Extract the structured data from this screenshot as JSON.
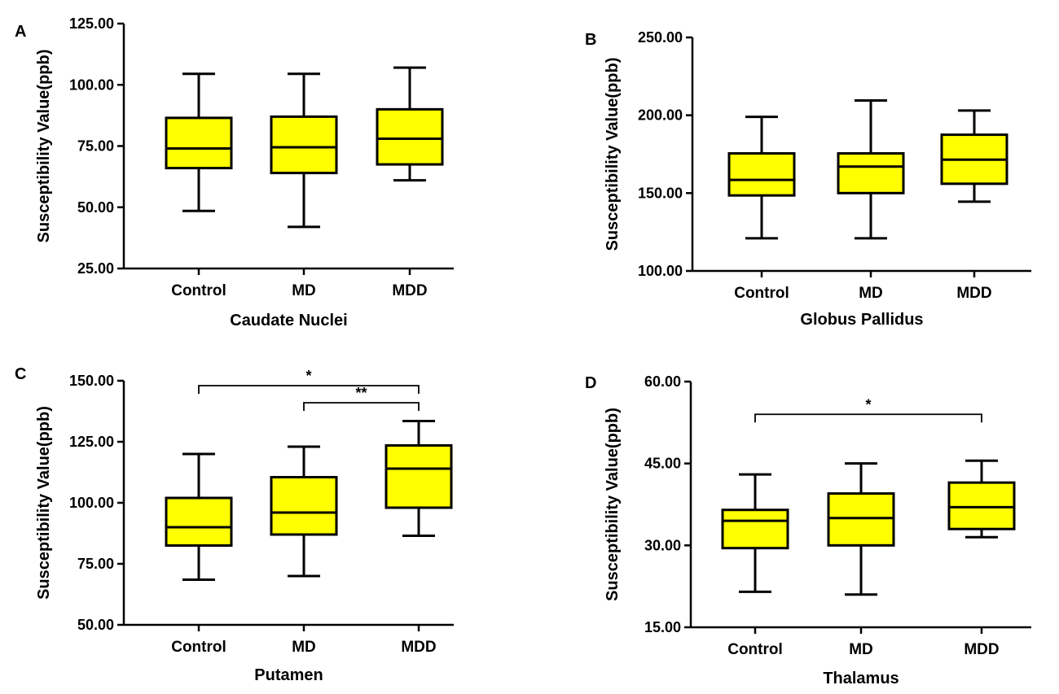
{
  "colors": {
    "box_fill": "#ffff00",
    "stroke": "#000000",
    "background": "#ffffff"
  },
  "chart_data": [
    {
      "type": "box",
      "panel": "A",
      "title": "",
      "xlabel": "Caudate Nuclei",
      "ylabel": "Susceptibility Value(ppb)",
      "ylim": [
        25,
        125
      ],
      "yticks": [
        25,
        50,
        75,
        100,
        125
      ],
      "ytick_labels": [
        "25.00",
        "50.00",
        "75.00",
        "100.00",
        "125.00"
      ],
      "categories": [
        "Control",
        "MD",
        "MDD"
      ],
      "boxes": [
        {
          "category": "Control",
          "min": 48.5,
          "q1": 66,
          "median": 74,
          "q3": 86.5,
          "max": 104.5
        },
        {
          "category": "MD",
          "min": 42,
          "q1": 64,
          "median": 74.5,
          "q3": 87,
          "max": 104.5
        },
        {
          "category": "MDD",
          "min": 61,
          "q1": 67.5,
          "median": 78,
          "q3": 90,
          "max": 107
        }
      ],
      "significance": []
    },
    {
      "type": "box",
      "panel": "B",
      "title": "",
      "xlabel": "Globus Pallidus",
      "ylabel": "Susceptibility Value(ppb)",
      "ylim": [
        100,
        250
      ],
      "yticks": [
        100,
        150,
        200,
        250
      ],
      "ytick_labels": [
        "100.00",
        "150.00",
        "200.00",
        "250.00"
      ],
      "categories": [
        "Control",
        "MD",
        "MDD"
      ],
      "boxes": [
        {
          "category": "Control",
          "min": 121,
          "q1": 148.5,
          "median": 158.5,
          "q3": 175.5,
          "max": 199
        },
        {
          "category": "MD",
          "min": 121,
          "q1": 150,
          "median": 167,
          "q3": 175.5,
          "max": 209.5
        },
        {
          "category": "MDD",
          "min": 144.5,
          "q1": 156,
          "median": 171.5,
          "q3": 187.5,
          "max": 203
        }
      ],
      "significance": []
    },
    {
      "type": "box",
      "panel": "C",
      "title": "",
      "xlabel": "Putamen",
      "ylabel": "Susceptibility Value(ppb)",
      "ylim": [
        50,
        150
      ],
      "yticks": [
        50,
        75,
        100,
        125,
        150
      ],
      "ytick_labels": [
        "50.00",
        "75.00",
        "100.00",
        "125.00",
        "150.00"
      ],
      "categories": [
        "Control",
        "MD",
        "MDD"
      ],
      "boxes": [
        {
          "category": "Control",
          "min": 68.5,
          "q1": 82.5,
          "median": 90,
          "q3": 102,
          "max": 120
        },
        {
          "category": "MD",
          "min": 70,
          "q1": 87,
          "median": 96,
          "q3": 110.5,
          "max": 123
        },
        {
          "category": "MDD",
          "min": 86.5,
          "q1": 98,
          "median": 114,
          "q3": 123.5,
          "max": 133.5
        }
      ],
      "significance": [
        {
          "from": "Control",
          "to": "MDD",
          "y": 148,
          "label": "*"
        },
        {
          "from": "MD",
          "to": "MDD",
          "y": 141,
          "label": "**"
        }
      ]
    },
    {
      "type": "box",
      "panel": "D",
      "title": "",
      "xlabel": "Thalamus",
      "ylabel": "Susceptibility Value(ppb)",
      "ylim": [
        15,
        60
      ],
      "yticks": [
        15,
        30,
        45,
        60
      ],
      "ytick_labels": [
        "15.00",
        "30.00",
        "45.00",
        "60.00"
      ],
      "categories": [
        "Control",
        "MD",
        "MDD"
      ],
      "boxes": [
        {
          "category": "Control",
          "min": 21.5,
          "q1": 29.5,
          "median": 34.5,
          "q3": 36.5,
          "max": 43
        },
        {
          "category": "MD",
          "min": 21,
          "q1": 30,
          "median": 35,
          "q3": 39.5,
          "max": 45
        },
        {
          "category": "MDD",
          "min": 31.5,
          "q1": 33,
          "median": 37,
          "q3": 41.5,
          "max": 45.5
        }
      ],
      "significance": [
        {
          "from": "Control",
          "to": "MDD",
          "y": 54,
          "label": "*"
        }
      ]
    }
  ]
}
